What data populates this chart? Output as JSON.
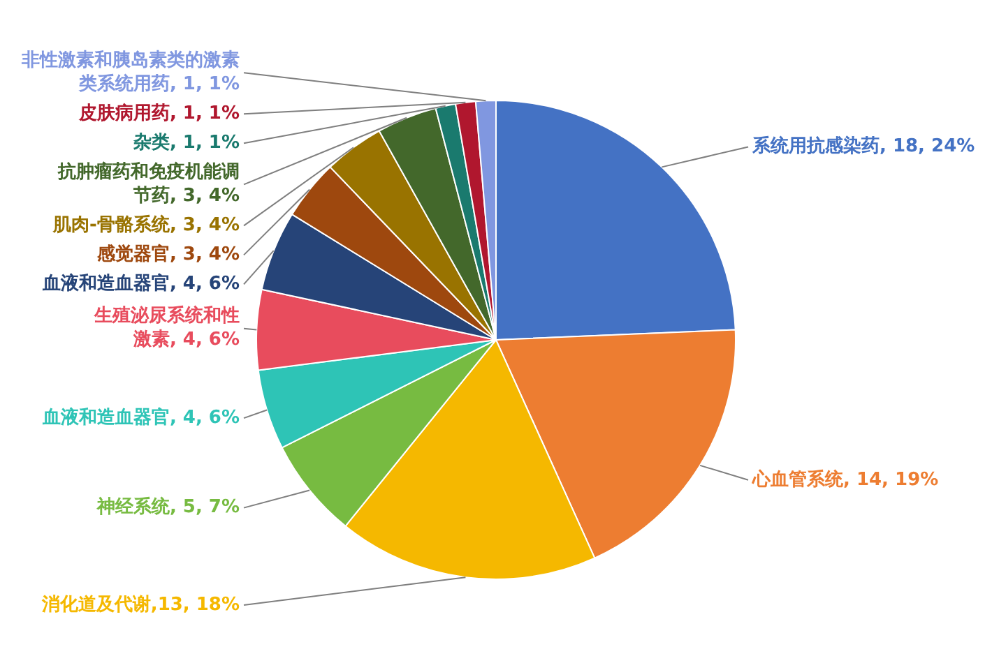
{
  "chart_data": {
    "type": "pie",
    "categories": [
      "系统用抗感染药",
      "心血管系统",
      "消化道及代谢",
      "神经系统",
      "血液和造血器官",
      "生殖泌尿系统和性激素",
      "血液和造血器官",
      "感觉器官",
      "肌肉-骨骼系统",
      "抗肿瘤药和免疫机能调节药",
      "杂类",
      "皮肤病用药",
      "非性激素和胰岛素类的激素类系统用药"
    ],
    "values": [
      18,
      14,
      13,
      5,
      4,
      4,
      4,
      3,
      3,
      3,
      1,
      1,
      1
    ],
    "value_labels": [
      ", 18, 24%",
      ", 14, 19%",
      ",13, 18%",
      ", 5, 7%",
      ", 4, 6%",
      ", 4, 6%",
      ", 4, 6%",
      ", 3, 4%",
      ", 3, 4%",
      ", 3, 4%",
      ", 1, 1%",
      ", 1, 1%",
      ", 1, 1%"
    ],
    "colors": [
      "#4472c4",
      "#ed7d31",
      "#f5b800",
      "#77bb41",
      "#2ec4b6",
      "#e84c5d",
      "#264478",
      "#9e480e",
      "#997300",
      "#43682b",
      "#1a7a6e",
      "#b0172e",
      "#8097e0"
    ],
    "legend": false
  }
}
